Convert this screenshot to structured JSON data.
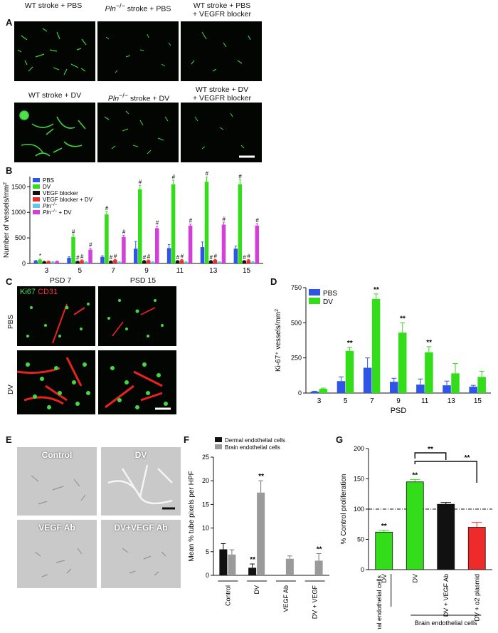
{
  "panel_labels": {
    "a": "A",
    "b": "B",
    "c": "C",
    "d": "D",
    "e": "E",
    "f": "F",
    "g": "G"
  },
  "panel_a": {
    "titles_top": [
      "WT stroke + PBS",
      "stroke + PBS",
      "WT stroke + PBS"
    ],
    "title_top_3_line2": "+ VEGFR blocker",
    "titles_bottom": [
      "WT stroke + DV",
      "stroke + DV",
      "WT stroke + DV"
    ],
    "title_bottom_3_line2": "+ VEGFR blocker",
    "pln": "Pln"
  },
  "chart_data": [
    {
      "id": "B",
      "type": "bar",
      "ylabel": "Number of vessels/mm",
      "xlabel": "PSD",
      "categories": [
        "3",
        "5",
        "7",
        "9",
        "11",
        "13",
        "15"
      ],
      "ylim": [
        0,
        1700
      ],
      "yticks": [
        "0",
        "500",
        "1000",
        "1500"
      ],
      "legend": "top-left",
      "series": [
        {
          "name": "PBS",
          "color": "#2f55e8",
          "values": [
            50,
            110,
            130,
            290,
            300,
            320,
            290
          ],
          "err": [
            10,
            20,
            20,
            140,
            70,
            100,
            50
          ]
        },
        {
          "name": "DV",
          "color": "#33dd1a",
          "values": [
            75,
            520,
            960,
            1450,
            1550,
            1600,
            1550
          ],
          "err": [
            10,
            40,
            60,
            80,
            80,
            90,
            90
          ]
        },
        {
          "name": "VEGF blocker",
          "color": "#111111",
          "values": [
            35,
            40,
            45,
            50,
            50,
            50,
            50
          ],
          "err": [
            8,
            8,
            8,
            8,
            8,
            8,
            8
          ]
        },
        {
          "name": "VEGF blocker + DV",
          "color": "#ee2b2b",
          "values": [
            40,
            60,
            70,
            60,
            65,
            70,
            65
          ],
          "err": [
            8,
            10,
            10,
            10,
            10,
            10,
            10
          ]
        },
        {
          "name": "Pln−/−",
          "color": "#5fc8e8",
          "values": [
            30,
            30,
            30,
            30,
            30,
            30,
            30
          ],
          "err": [
            5,
            5,
            5,
            5,
            5,
            5,
            5
          ]
        },
        {
          "name": "Pln−/− + DV",
          "color": "#d33fd8",
          "values": [
            40,
            270,
            520,
            690,
            740,
            760,
            740
          ],
          "err": [
            8,
            30,
            30,
            40,
            30,
            50,
            40
          ]
        }
      ],
      "annotations": [
        "*",
        "#"
      ]
    },
    {
      "id": "D",
      "type": "bar",
      "ylabel": "Ki-67⁺ vessels/mm",
      "xlabel": "PSD",
      "categories": [
        "3",
        "5",
        "7",
        "9",
        "11",
        "13",
        "15"
      ],
      "ylim": [
        0,
        750
      ],
      "yticks": [
        "0",
        "250",
        "500",
        "750"
      ],
      "legend": "top-left",
      "series": [
        {
          "name": "PBS",
          "color": "#2f55e8",
          "values": [
            10,
            85,
            180,
            80,
            60,
            55,
            45
          ],
          "err": [
            3,
            30,
            70,
            25,
            40,
            30,
            10
          ]
        },
        {
          "name": "DV",
          "color": "#33dd1a",
          "values": [
            30,
            300,
            670,
            430,
            290,
            140,
            115
          ],
          "err": [
            5,
            25,
            35,
            70,
            40,
            70,
            40
          ]
        }
      ],
      "annotations": [
        "**",
        "**",
        "**",
        "**"
      ]
    },
    {
      "id": "F",
      "type": "bar",
      "ylabel": "Mean % tube pixels per HPF",
      "categories": [
        "Control",
        "DV",
        "VEGF Ab",
        "DV + VEGF"
      ],
      "ylim": [
        0,
        25
      ],
      "yticks": [
        "0",
        "5",
        "10",
        "15",
        "20",
        "25"
      ],
      "legend": "top",
      "series": [
        {
          "name": "Dermal endothelial cells",
          "color": "#111111",
          "values": [
            5.5,
            1.6,
            null,
            null
          ],
          "err": [
            1.2,
            0.8,
            null,
            null
          ]
        },
        {
          "name": "Brain endothelial cells",
          "color": "#9a9a9a",
          "values": [
            4.4,
            17.5,
            3.5,
            3.1
          ],
          "err": [
            1.0,
            2.5,
            0.6,
            1.5
          ]
        }
      ],
      "annotations": [
        "**",
        "**",
        "**"
      ]
    },
    {
      "id": "G",
      "type": "bar",
      "ylabel": "% Control proliferation",
      "categories": [
        "DV",
        "DV",
        "DV + VEGF Ab",
        "DV + α2 plasmid"
      ],
      "groups": [
        "Dermal endothelial cells",
        "Brain endothelial cells"
      ],
      "ylim": [
        0,
        200
      ],
      "yticks": [
        "0",
        "50",
        "100",
        "150",
        "200"
      ],
      "values": [
        62,
        145,
        108,
        70
      ],
      "err": [
        3,
        4,
        3,
        8
      ],
      "colors": [
        "#33dd1a",
        "#33dd1a",
        "#111111",
        "#ee2b2b"
      ],
      "reference_line": 100,
      "annotations": [
        "**",
        "**",
        "**",
        "**"
      ]
    }
  ],
  "panel_c": {
    "col_titles": [
      "PSD 7",
      "PSD 15"
    ],
    "row_labels": [
      "PBS",
      "DV"
    ],
    "stain_1": "Ki67",
    "stain_2": "CD31"
  },
  "panel_e": {
    "labels": [
      "Control",
      "DV",
      "VEGF Ab",
      "DV+VEGF Ab"
    ]
  },
  "panel_b_legend_extra": "−/−"
}
